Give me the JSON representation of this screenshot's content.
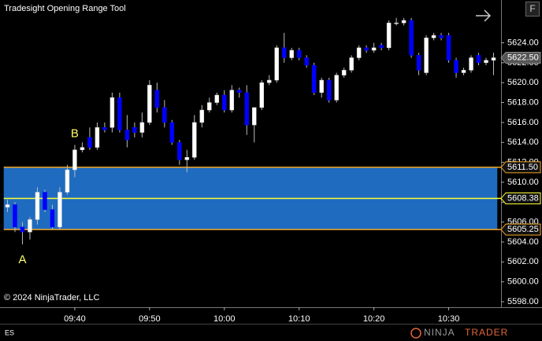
{
  "chart_data": {
    "type": "candlestick",
    "title": "Tradesight Opening Range Tool",
    "x": [
      "09:31",
      "09:32",
      "09:33",
      "09:34",
      "09:35",
      "09:36",
      "09:37",
      "09:38",
      "09:39",
      "09:40",
      "09:41",
      "09:42",
      "09:43",
      "09:44",
      "09:45",
      "09:46",
      "09:47",
      "09:48",
      "09:49",
      "09:50",
      "09:51",
      "09:52",
      "09:53",
      "09:54",
      "09:55",
      "09:56",
      "09:57",
      "09:58",
      "09:59",
      "10:00",
      "10:01",
      "10:02",
      "10:03",
      "10:04",
      "10:05",
      "10:06",
      "10:07",
      "10:08",
      "10:09",
      "10:10",
      "10:11",
      "10:12",
      "10:13",
      "10:14",
      "10:15",
      "10:16",
      "10:17",
      "10:18",
      "10:19",
      "10:20",
      "10:21",
      "10:22",
      "10:23",
      "10:24",
      "10:25",
      "10:26",
      "10:27",
      "10:28",
      "10:29",
      "10:30",
      "10:31",
      "10:32",
      "10:33",
      "10:34",
      "10:35",
      "10:36"
    ],
    "open": [
      5607.5,
      5607.75,
      5605.5,
      5605.0,
      5606.25,
      5609.0,
      5607.25,
      5605.5,
      5609.0,
      5611.25,
      5613.25,
      5614.5,
      5613.5,
      5615.5,
      5615.5,
      5618.5,
      5615.25,
      5615.5,
      5615.0,
      5616.0,
      5619.25,
      5617.5,
      5616.0,
      5614.0,
      5612.25,
      5612.5,
      5616.0,
      5617.25,
      5618.0,
      5618.75,
      5617.25,
      5619.25,
      5619.0,
      5615.75,
      5617.5,
      5620.0,
      5620.25,
      5623.5,
      5622.5,
      5623.25,
      5622.5,
      5621.75,
      5619.0,
      5620.25,
      5618.25,
      5620.75,
      5621.25,
      5622.5,
      5623.5,
      5623.25,
      5623.75,
      5623.5,
      5626.0,
      5626.0,
      5626.25,
      5622.75,
      5621.0,
      5624.5,
      5624.75,
      5624.75,
      5622.25,
      5621.0,
      5621.25,
      5622.75,
      5622.0,
      5622.25
    ],
    "high": [
      5608.25,
      5608.0,
      5606.0,
      5606.5,
      5609.5,
      5609.25,
      5607.75,
      5609.5,
      5611.75,
      5613.75,
      5614.0,
      5615.5,
      5616.0,
      5616.0,
      5619.0,
      5619.0,
      5616.75,
      5616.0,
      5617.0,
      5620.25,
      5620.0,
      5618.25,
      5616.25,
      5614.25,
      5613.25,
      5616.75,
      5617.75,
      5618.5,
      5619.0,
      5619.25,
      5619.75,
      5619.5,
      5619.75,
      5617.5,
      5620.25,
      5620.75,
      5623.75,
      5625.0,
      5623.5,
      5623.5,
      5622.75,
      5622.0,
      5620.5,
      5620.5,
      5621.0,
      5621.5,
      5622.75,
      5623.75,
      5623.75,
      5624.0,
      5624.0,
      5626.25,
      5626.5,
      5626.5,
      5626.5,
      5623.0,
      5624.75,
      5625.0,
      5625.0,
      5625.0,
      5622.5,
      5621.5,
      5622.75,
      5623.0,
      5622.5,
      5623.0
    ],
    "low": [
      5607.0,
      5605.0,
      5603.75,
      5604.25,
      5605.75,
      5607.0,
      5605.25,
      5605.25,
      5608.75,
      5610.5,
      5613.0,
      5613.25,
      5613.25,
      5615.0,
      5615.0,
      5615.0,
      5613.5,
      5614.5,
      5614.5,
      5615.75,
      5617.0,
      5615.5,
      5613.75,
      5611.75,
      5611.0,
      5612.25,
      5615.5,
      5617.0,
      5617.75,
      5617.0,
      5617.0,
      5618.5,
      5614.75,
      5614.0,
      5617.25,
      5619.75,
      5620.0,
      5622.0,
      5622.25,
      5622.25,
      5621.5,
      5618.75,
      5618.5,
      5618.0,
      5618.0,
      5620.5,
      5621.0,
      5622.25,
      5623.0,
      5623.0,
      5623.25,
      5623.25,
      5625.75,
      5625.75,
      5622.5,
      5620.75,
      5620.75,
      5624.25,
      5624.25,
      5622.0,
      5620.5,
      5620.75,
      5621.0,
      5621.75,
      5621.75,
      5620.75
    ],
    "close": [
      5607.75,
      5605.5,
      5605.0,
      5606.25,
      5609.0,
      5607.25,
      5605.5,
      5609.0,
      5611.25,
      5613.25,
      5613.5,
      5613.5,
      5615.5,
      5615.25,
      5618.5,
      5615.25,
      5614.25,
      5615.0,
      5616.0,
      5619.75,
      5617.5,
      5616.0,
      5614.0,
      5612.25,
      5612.5,
      5616.0,
      5617.25,
      5618.0,
      5618.75,
      5617.25,
      5619.25,
      5619.0,
      5615.75,
      5617.5,
      5620.0,
      5620.25,
      5623.5,
      5622.5,
      5623.25,
      5622.5,
      5621.75,
      5619.0,
      5620.25,
      5618.25,
      5620.75,
      5621.25,
      5622.5,
      5623.5,
      5623.25,
      5623.5,
      5623.5,
      5626.0,
      5626.0,
      5626.25,
      5622.75,
      5621.25,
      5624.5,
      5624.75,
      5624.5,
      5622.25,
      5621.0,
      5621.25,
      5622.5,
      5622.0,
      5622.25,
      5622.5
    ],
    "up_color": "#ffffff",
    "down_color": "#0000ff",
    "xlim": [
      "09:30",
      "10:37"
    ],
    "xticks": [
      "09:40",
      "09:50",
      "10:00",
      "10:10",
      "10:20",
      "10:30"
    ],
    "ylim": [
      5597.45,
      5628.3
    ],
    "yticks": [
      {
        "value": 5598,
        "label": "5598.00"
      },
      {
        "value": 5600,
        "label": "5600.00"
      },
      {
        "value": 5602,
        "label": "5602.00"
      },
      {
        "value": 5604,
        "label": "5604.00"
      },
      {
        "value": 5606,
        "label": "5606.00"
      },
      {
        "value": 5608,
        "label": "5608.00"
      },
      {
        "value": 5610,
        "label": "5610.00"
      },
      {
        "value": 5612,
        "label": "5612.00"
      },
      {
        "value": 5614,
        "label": "5614.00"
      },
      {
        "value": 5616,
        "label": "5616.00"
      },
      {
        "value": 5618,
        "label": "5618.00"
      },
      {
        "value": 5620,
        "label": "5620.00"
      },
      {
        "value": 5622,
        "label": "5622.00"
      },
      {
        "value": 5624,
        "label": "5624.00"
      }
    ],
    "opening_range": {
      "high": {
        "value": 5611.5,
        "label": "5611.50"
      },
      "mid": {
        "value": 5608.38,
        "label": "5608.38"
      },
      "low": {
        "value": 5605.25,
        "label": "5605.25"
      },
      "color": "#1e6bc0"
    },
    "last_price": {
      "value": 5622.5,
      "label": "5622.50"
    },
    "annotations": [
      {
        "text": "A",
        "x": "09:33"
      },
      {
        "text": "B",
        "x": "09:40"
      }
    ],
    "copyright": "© 2024 NinjaTrader, LLC",
    "instrument": "ES",
    "brand": [
      "NINJA",
      "TRADER"
    ],
    "button": "F"
  }
}
